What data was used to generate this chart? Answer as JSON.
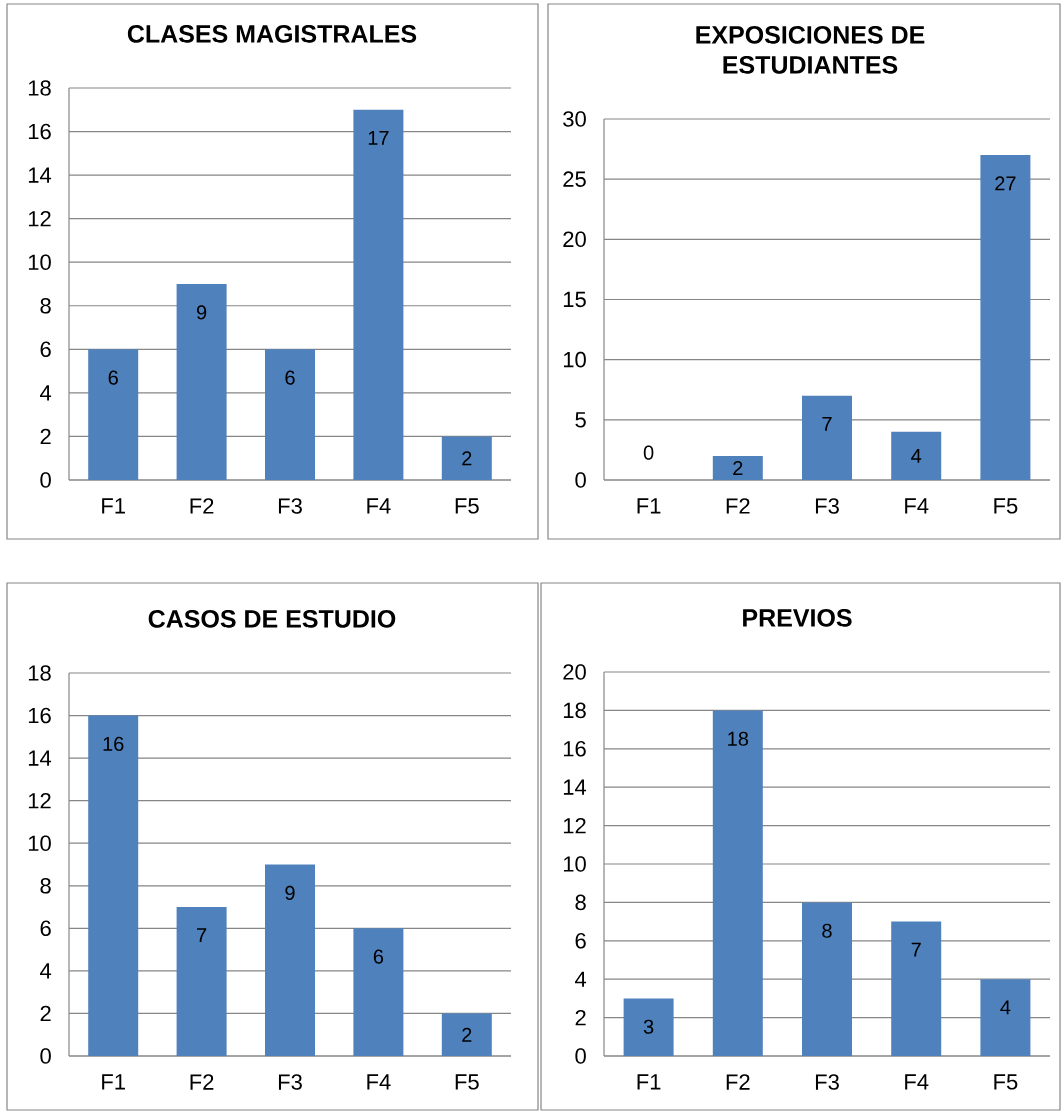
{
  "chart_data": [
    {
      "type": "bar",
      "title": "CLASES MAGISTRALES",
      "categories": [
        "F1",
        "F2",
        "F3",
        "F4",
        "F5"
      ],
      "values": [
        6,
        9,
        6,
        17,
        2
      ],
      "color": "#4f81bd",
      "ylim": [
        0,
        18
      ],
      "yticks": [
        0,
        2,
        4,
        6,
        8,
        10,
        12,
        14,
        16,
        18
      ],
      "grid": "y",
      "data_labels": true
    },
    {
      "type": "bar",
      "title": "EXPOSICIONES DE ESTUDIANTES",
      "categories": [
        "F1",
        "F2",
        "F3",
        "F4",
        "F5"
      ],
      "values": [
        0,
        2,
        7,
        4,
        27
      ],
      "color": "#4f81bd",
      "ylim": [
        0,
        30
      ],
      "yticks": [
        0,
        5,
        10,
        15,
        20,
        25,
        30
      ],
      "grid": "y",
      "data_labels": true
    },
    {
      "type": "bar",
      "title": "CASOS DE ESTUDIO",
      "categories": [
        "F1",
        "F2",
        "F3",
        "F4",
        "F5"
      ],
      "values": [
        16,
        7,
        9,
        6,
        2
      ],
      "color": "#4f81bd",
      "ylim": [
        0,
        18
      ],
      "yticks": [
        0,
        2,
        4,
        6,
        8,
        10,
        12,
        14,
        16,
        18
      ],
      "grid": "y",
      "data_labels": true
    },
    {
      "type": "bar",
      "title": "PREVIOS",
      "categories": [
        "F1",
        "F2",
        "F3",
        "F4",
        "F5"
      ],
      "values": [
        3,
        18,
        8,
        7,
        4
      ],
      "color": "#4f81bd",
      "ylim": [
        0,
        20
      ],
      "yticks": [
        0,
        2,
        4,
        6,
        8,
        10,
        12,
        14,
        16,
        18,
        20
      ],
      "grid": "y",
      "data_labels": true
    }
  ]
}
